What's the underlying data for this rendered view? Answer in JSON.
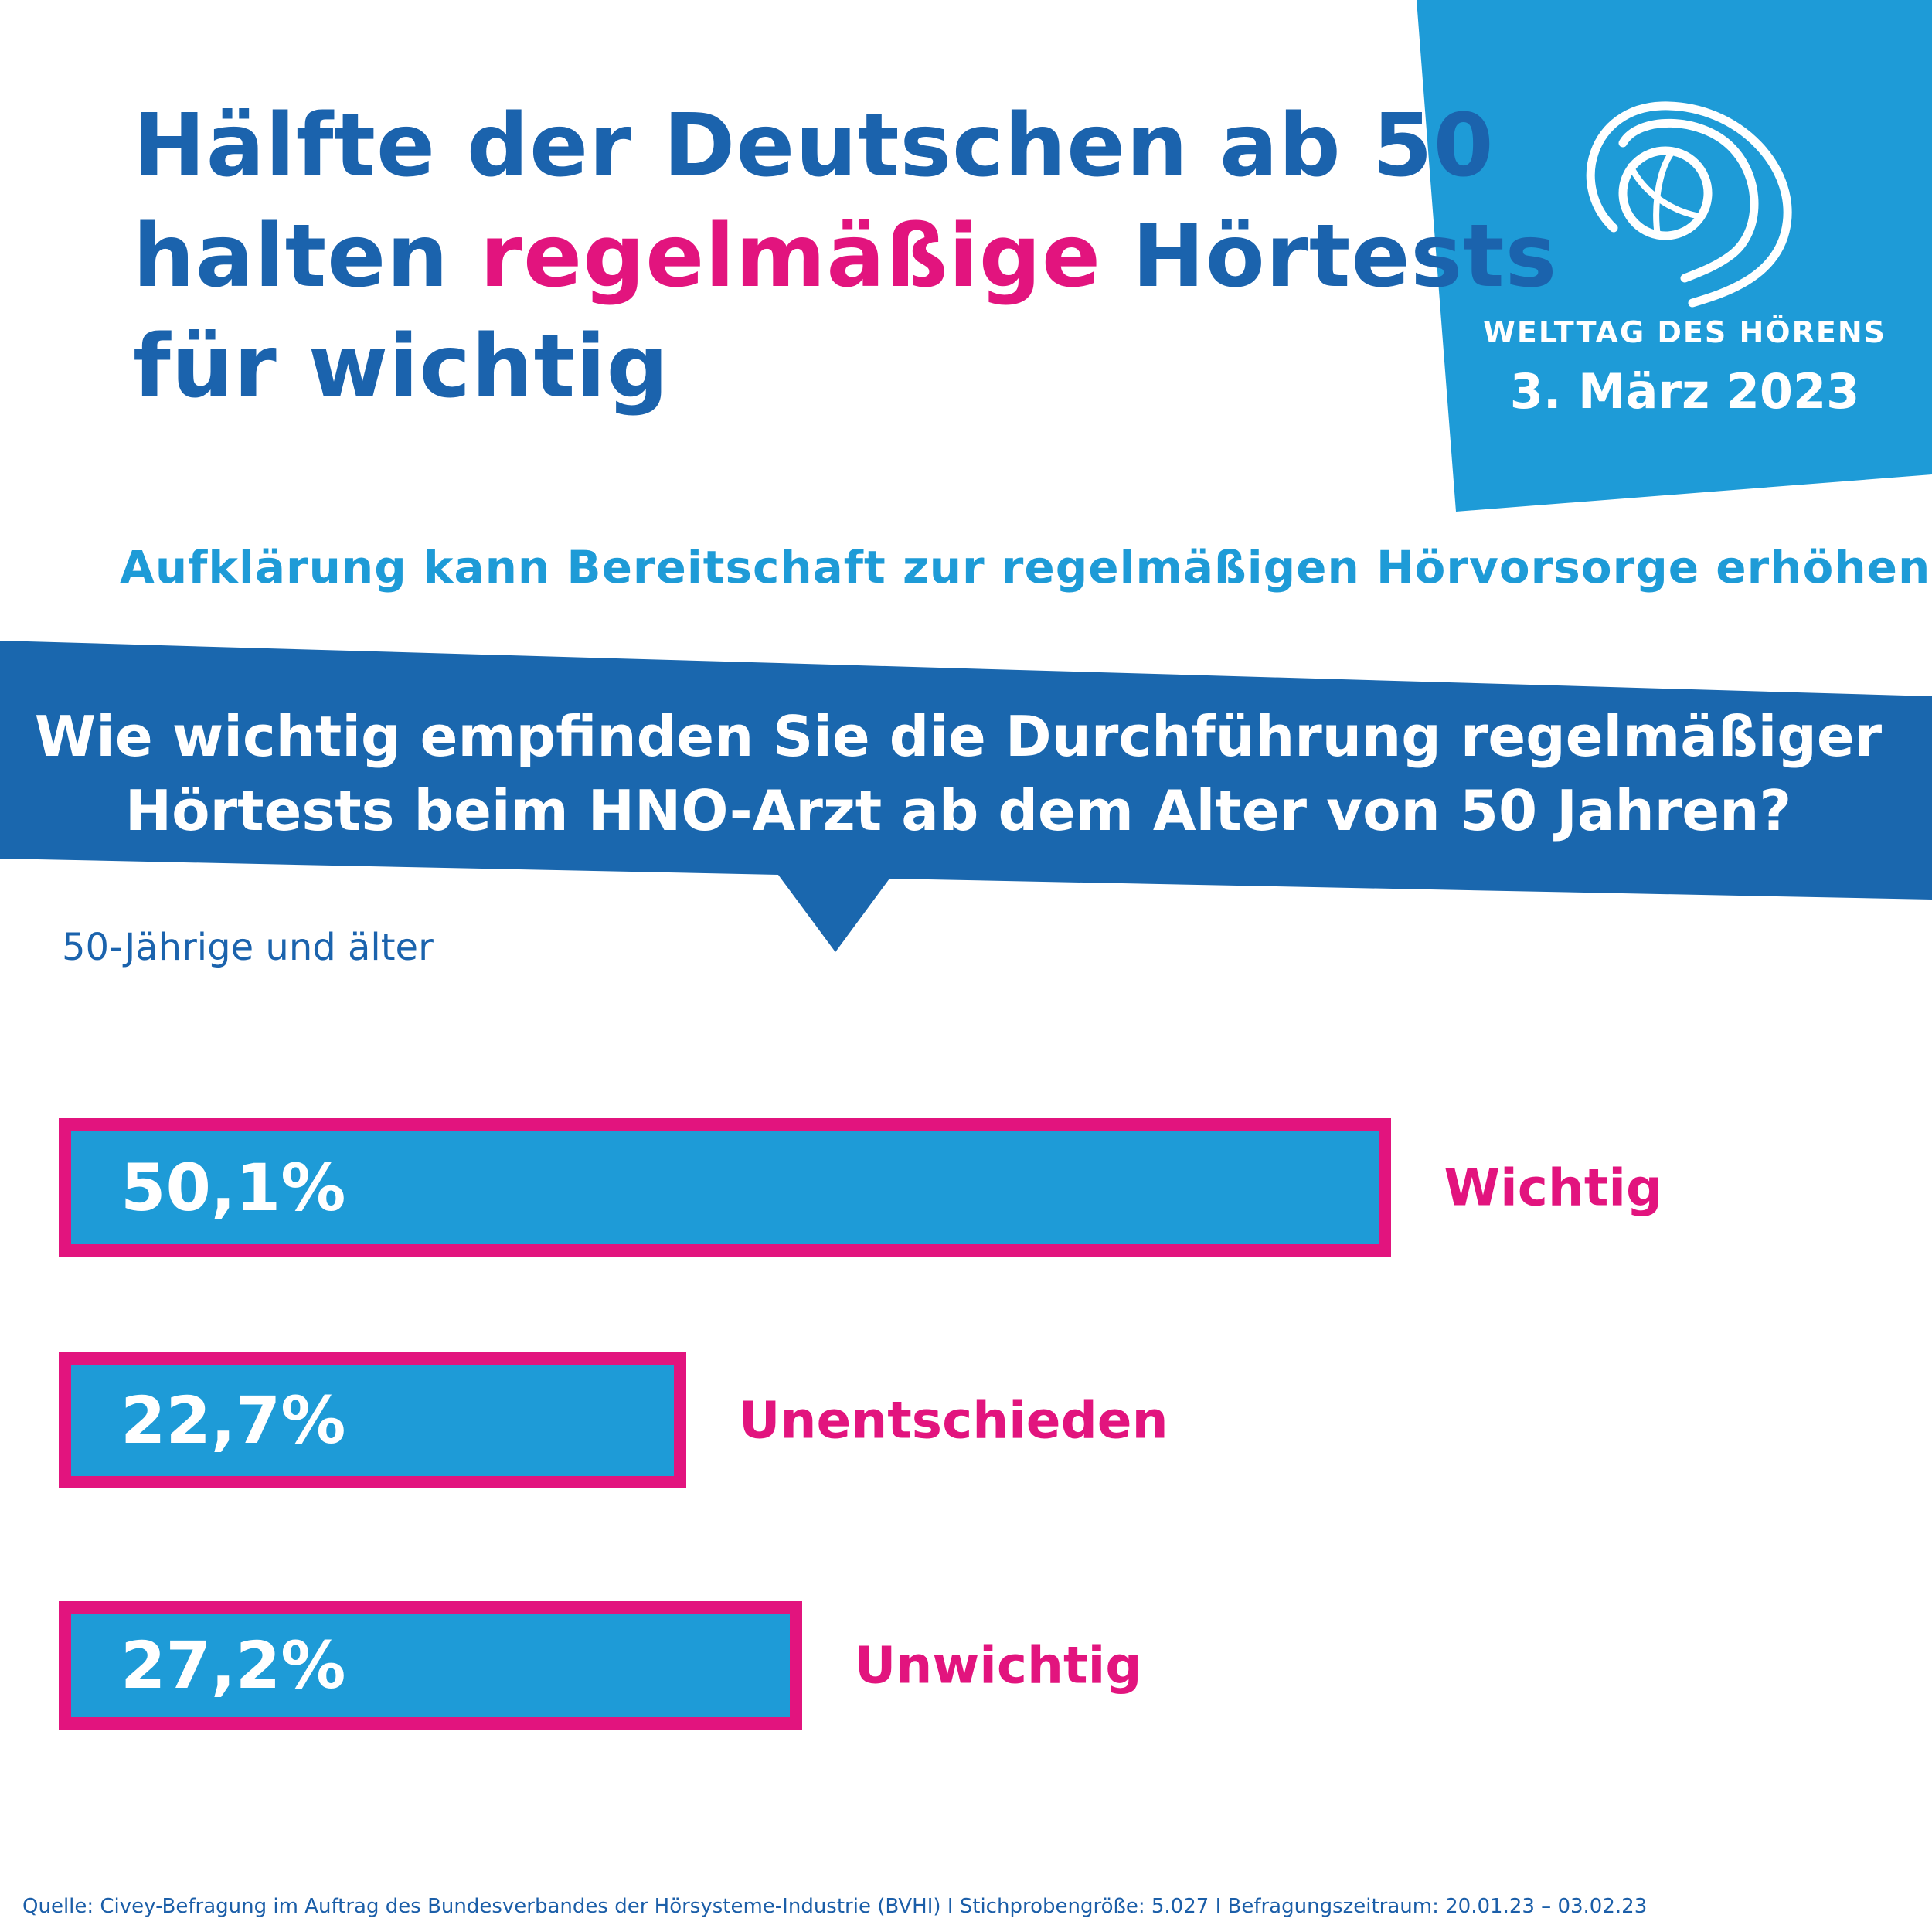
{
  "title": {
    "part1": "Hälfte der Deutschen ab 50",
    "part2a": "halten ",
    "highlight": "regelmäßige",
    "part2b": " Hörtests",
    "part3": "für wichtig"
  },
  "badge": {
    "logo": "welttag-des-hoerens-ear-globe-logo",
    "name": "WELTTAG DES HÖRENS",
    "date": "3. März 2023"
  },
  "subtitle": "Aufklärung kann Bereitschaft zur regelmäßigen Hörvorsorge erhöhen",
  "question": {
    "line1": "Wie wichtig empfinden Sie die Durchführung regelmäßiger",
    "line2": "Hörtests beim HNO-Arzt ab dem Alter von 50 Jahren?"
  },
  "group_label": "50-Jährige und älter",
  "colors": {
    "title": "#1b63ad",
    "accent": "#e2147e",
    "bar": "#1e9bd7",
    "band": "#1a67ae"
  },
  "chart_data": {
    "type": "bar",
    "orientation": "horizontal",
    "categories": [
      "Wichtig",
      "Unentschieden",
      "Unwichtig"
    ],
    "values": [
      50.1,
      22.7,
      27.2
    ],
    "value_labels": [
      "50,1%",
      "22,7%",
      "27,2%"
    ],
    "unit": "%"
  },
  "footer": "Quelle: Civey-Befragung im Auftrag des Bundesverbandes der Hörsysteme-Industrie (BVHI) I Stichprobengröße: 5.027 I Befragungszeitraum: 20.01.23 – 03.02.23"
}
